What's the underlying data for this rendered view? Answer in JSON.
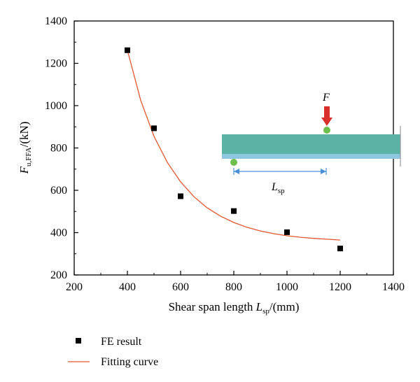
{
  "chart_data": {
    "type": "scatter",
    "xlabel": {
      "main": "Shear span length ",
      "symbol": "L",
      "sub": "sp",
      "unit": "/(mm)"
    },
    "ylabel": {
      "symbol": "F",
      "sub": "u,FFA",
      "unit": "/(kN)"
    },
    "xlim": [
      200,
      1400
    ],
    "ylim": [
      200,
      1400
    ],
    "xticks": [
      200,
      400,
      600,
      800,
      1000,
      1200,
      1400
    ],
    "yticks": [
      200,
      400,
      600,
      800,
      1000,
      1200,
      1400
    ],
    "grid": false,
    "legend_position": "bottom-left",
    "series": [
      {
        "name": "FE result",
        "kind": "markers",
        "color": "#000000",
        "x": [
          400,
          500,
          600,
          800,
          1000,
          1200
        ],
        "y": [
          1262,
          893,
          572,
          502,
          402,
          325
        ]
      },
      {
        "name": "Fitting curve",
        "kind": "line",
        "color": "#e2552e",
        "x": [
          400,
          450,
          500,
          550,
          600,
          650,
          700,
          750,
          800,
          850,
          900,
          950,
          1000,
          1050,
          1100,
          1150,
          1200
        ],
        "y": [
          1262,
          1025,
          855,
          732,
          640,
          570,
          517,
          478,
          448,
          425,
          408,
          395,
          385,
          378,
          373,
          369,
          365
        ]
      }
    ],
    "inset": {
      "force_label": "F",
      "span_label": {
        "symbol": "L",
        "sub": "sp"
      },
      "beam_color": "#5bb3a6",
      "beam_bottom_color": "#8ec6e0",
      "support_color": "#6cbf4b",
      "arrow_color": "#d9302b",
      "dimension_color": "#4a90d9"
    }
  }
}
